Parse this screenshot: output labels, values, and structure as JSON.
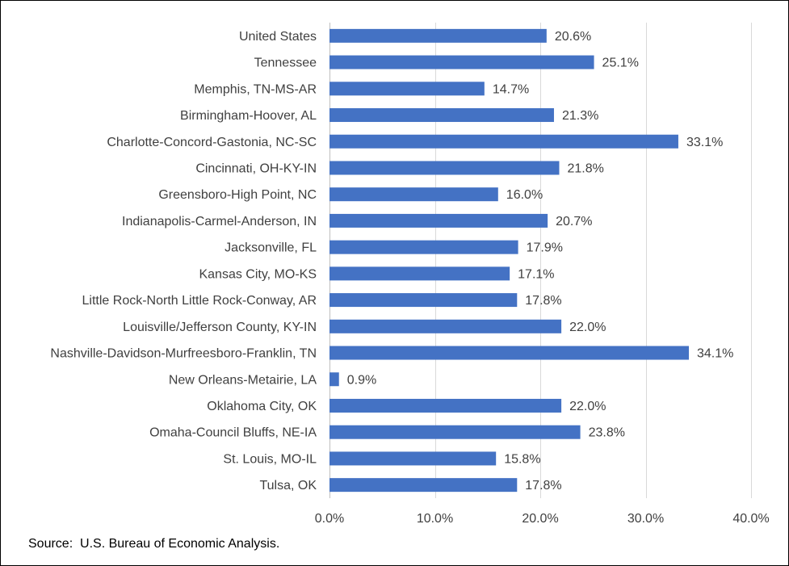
{
  "chart_data": {
    "type": "bar",
    "orientation": "horizontal",
    "categories": [
      "United States",
      "Tennessee",
      "Memphis, TN-MS-AR",
      "Birmingham-Hoover, AL",
      "Charlotte-Concord-Gastonia, NC-SC",
      "Cincinnati, OH-KY-IN",
      "Greensboro-High Point, NC",
      "Indianapolis-Carmel-Anderson, IN",
      "Jacksonville, FL",
      "Kansas City, MO-KS",
      "Little Rock-North Little Rock-Conway, AR",
      "Louisville/Jefferson County, KY-IN",
      "Nashville-Davidson-Murfreesboro-Franklin, TN",
      "New Orleans-Metairie, LA",
      "Oklahoma City, OK",
      "Omaha-Council Bluffs, NE-IA",
      "St. Louis, MO-IL",
      "Tulsa, OK"
    ],
    "values": [
      20.6,
      25.1,
      14.7,
      21.3,
      33.1,
      21.8,
      16.0,
      20.7,
      17.9,
      17.1,
      17.8,
      22.0,
      34.1,
      0.9,
      22.0,
      23.8,
      15.8,
      17.8
    ],
    "value_labels": [
      "20.6%",
      "25.1%",
      "14.7%",
      "21.3%",
      "33.1%",
      "21.8%",
      "16.0%",
      "20.7%",
      "17.9%",
      "17.1%",
      "17.8%",
      "22.0%",
      "34.1%",
      "0.9%",
      "22.0%",
      "23.8%",
      "15.8%",
      "17.8%"
    ],
    "x_ticks": [
      0,
      10,
      20,
      30,
      40
    ],
    "x_tick_labels": [
      "0.0%",
      "10.0%",
      "20.0%",
      "30.0%",
      "40.0%"
    ],
    "xlim": [
      0,
      40
    ],
    "grid": "vertical",
    "bar_color": "#4472C4",
    "grid_color": "#D9D9D9",
    "title": "",
    "xlabel": "",
    "ylabel": ""
  },
  "source_note": "Source:  U.S. Bureau of Economic Analysis."
}
